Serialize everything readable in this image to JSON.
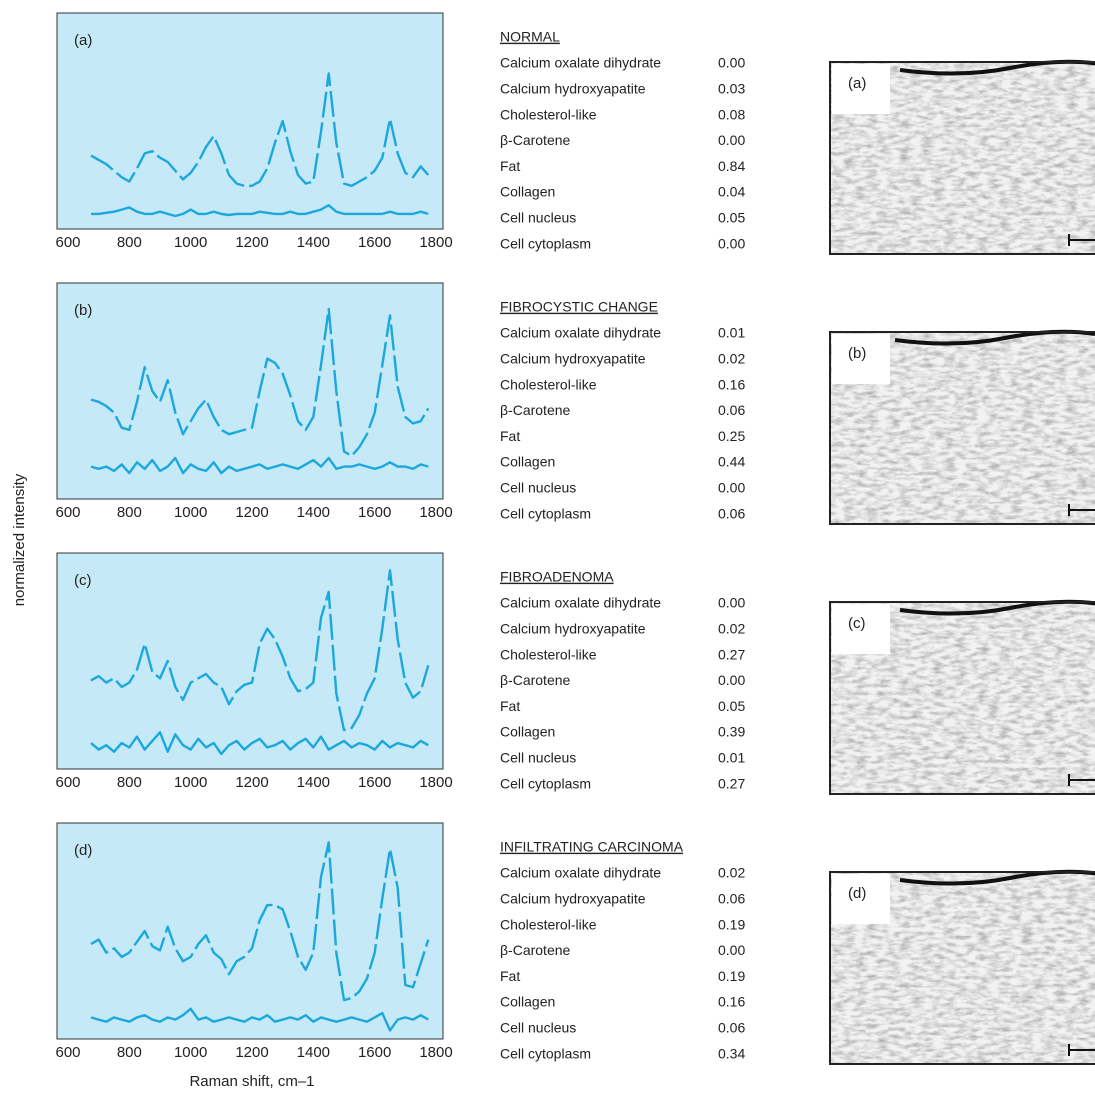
{
  "axis_labels": {
    "y": "normalized intensity",
    "x": "Raman shift, cm–1"
  },
  "chart_data": [
    {
      "type": "line",
      "label": "(a)",
      "xlim": [
        600,
        1800
      ],
      "ylim": [
        0,
        1
      ],
      "xticks": [
        600,
        800,
        1000,
        1200,
        1400,
        1600,
        1800
      ],
      "background": "#c6e9f7",
      "x": [
        675,
        700,
        725,
        750,
        775,
        800,
        825,
        850,
        875,
        900,
        925,
        950,
        975,
        1000,
        1025,
        1050,
        1075,
        1100,
        1125,
        1150,
        1175,
        1200,
        1225,
        1250,
        1275,
        1300,
        1325,
        1350,
        1375,
        1400,
        1425,
        1450,
        1475,
        1500,
        1525,
        1550,
        1575,
        1600,
        1625,
        1650,
        1675,
        1700,
        1725,
        1750,
        1775
      ],
      "series": [
        {
          "color": "#1ba8dc",
          "style": "dashed",
          "values": [
            0.34,
            0.32,
            0.3,
            0.27,
            0.24,
            0.22,
            0.28,
            0.35,
            0.36,
            0.33,
            0.31,
            0.27,
            0.23,
            0.26,
            0.31,
            0.38,
            0.43,
            0.35,
            0.25,
            0.21,
            0.2,
            0.2,
            0.22,
            0.28,
            0.4,
            0.5,
            0.36,
            0.25,
            0.21,
            0.22,
            0.45,
            0.72,
            0.4,
            0.21,
            0.2,
            0.22,
            0.24,
            0.27,
            0.33,
            0.51,
            0.35,
            0.26,
            0.24,
            0.29,
            0.25
          ]
        },
        {
          "color": "#1ba8dc",
          "style": "solid",
          "values": [
            0.07,
            0.07,
            0.075,
            0.08,
            0.09,
            0.1,
            0.08,
            0.07,
            0.07,
            0.08,
            0.07,
            0.06,
            0.07,
            0.09,
            0.07,
            0.07,
            0.08,
            0.07,
            0.065,
            0.07,
            0.07,
            0.07,
            0.08,
            0.075,
            0.07,
            0.07,
            0.08,
            0.07,
            0.07,
            0.08,
            0.09,
            0.11,
            0.08,
            0.07,
            0.07,
            0.07,
            0.07,
            0.07,
            0.07,
            0.08,
            0.07,
            0.07,
            0.07,
            0.08,
            0.07
          ]
        }
      ]
    },
    {
      "type": "line",
      "label": "(b)",
      "xlim": [
        600,
        1800
      ],
      "ylim": [
        0,
        1
      ],
      "xticks": [
        600,
        800,
        1000,
        1200,
        1400,
        1600,
        1800
      ],
      "background": "#c6e9f7",
      "x": [
        675,
        700,
        725,
        750,
        775,
        800,
        825,
        850,
        875,
        900,
        925,
        950,
        975,
        1000,
        1025,
        1050,
        1075,
        1100,
        1125,
        1150,
        1175,
        1200,
        1225,
        1250,
        1275,
        1300,
        1325,
        1350,
        1375,
        1400,
        1425,
        1450,
        1475,
        1500,
        1525,
        1550,
        1575,
        1600,
        1625,
        1650,
        1675,
        1700,
        1725,
        1750,
        1775
      ],
      "series": [
        {
          "color": "#1ba8dc",
          "style": "dashed",
          "values": [
            0.46,
            0.45,
            0.43,
            0.4,
            0.33,
            0.32,
            0.45,
            0.61,
            0.5,
            0.45,
            0.55,
            0.4,
            0.3,
            0.36,
            0.42,
            0.46,
            0.38,
            0.32,
            0.3,
            0.31,
            0.32,
            0.33,
            0.5,
            0.65,
            0.63,
            0.58,
            0.48,
            0.36,
            0.32,
            0.38,
            0.62,
            0.88,
            0.5,
            0.22,
            0.2,
            0.24,
            0.3,
            0.4,
            0.62,
            0.85,
            0.52,
            0.38,
            0.35,
            0.36,
            0.42
          ]
        },
        {
          "color": "#1ba8dc",
          "style": "solid",
          "values": [
            0.15,
            0.14,
            0.15,
            0.13,
            0.16,
            0.12,
            0.17,
            0.14,
            0.18,
            0.13,
            0.15,
            0.19,
            0.12,
            0.16,
            0.14,
            0.13,
            0.17,
            0.12,
            0.15,
            0.13,
            0.14,
            0.15,
            0.16,
            0.14,
            0.15,
            0.16,
            0.15,
            0.14,
            0.16,
            0.18,
            0.15,
            0.19,
            0.14,
            0.15,
            0.15,
            0.16,
            0.15,
            0.14,
            0.15,
            0.17,
            0.15,
            0.15,
            0.14,
            0.16,
            0.15
          ]
        }
      ]
    },
    {
      "type": "line",
      "label": "(c)",
      "xlim": [
        600,
        1800
      ],
      "ylim": [
        0,
        1
      ],
      "xticks": [
        600,
        800,
        1000,
        1200,
        1400,
        1600,
        1800
      ],
      "background": "#c6e9f7",
      "x": [
        675,
        700,
        725,
        750,
        775,
        800,
        825,
        850,
        875,
        900,
        925,
        950,
        975,
        1000,
        1025,
        1050,
        1075,
        1100,
        1125,
        1150,
        1175,
        1200,
        1225,
        1250,
        1275,
        1300,
        1325,
        1350,
        1375,
        1400,
        1425,
        1450,
        1475,
        1500,
        1525,
        1550,
        1575,
        1600,
        1625,
        1650,
        1675,
        1700,
        1725,
        1750,
        1775
      ],
      "series": [
        {
          "color": "#1ba8dc",
          "style": "dashed",
          "values": [
            0.41,
            0.43,
            0.4,
            0.42,
            0.38,
            0.4,
            0.46,
            0.58,
            0.45,
            0.42,
            0.5,
            0.38,
            0.32,
            0.4,
            0.42,
            0.44,
            0.4,
            0.38,
            0.3,
            0.36,
            0.39,
            0.4,
            0.58,
            0.65,
            0.6,
            0.52,
            0.42,
            0.36,
            0.37,
            0.4,
            0.7,
            0.82,
            0.35,
            0.18,
            0.19,
            0.25,
            0.35,
            0.42,
            0.65,
            0.92,
            0.6,
            0.4,
            0.33,
            0.36,
            0.48
          ]
        },
        {
          "color": "#1ba8dc",
          "style": "solid",
          "values": [
            0.12,
            0.09,
            0.11,
            0.08,
            0.12,
            0.1,
            0.15,
            0.09,
            0.13,
            0.17,
            0.08,
            0.16,
            0.11,
            0.09,
            0.14,
            0.1,
            0.12,
            0.07,
            0.11,
            0.13,
            0.09,
            0.12,
            0.14,
            0.1,
            0.11,
            0.13,
            0.09,
            0.12,
            0.14,
            0.1,
            0.15,
            0.09,
            0.11,
            0.13,
            0.1,
            0.12,
            0.11,
            0.09,
            0.13,
            0.1,
            0.12,
            0.11,
            0.1,
            0.13,
            0.11
          ]
        }
      ]
    },
    {
      "type": "line",
      "label": "(d)",
      "xlim": [
        600,
        1800
      ],
      "ylim": [
        0,
        1
      ],
      "xticks": [
        600,
        800,
        1000,
        1200,
        1400,
        1600,
        1800
      ],
      "background": "#c6e9f7",
      "x": [
        675,
        700,
        725,
        750,
        775,
        800,
        825,
        850,
        875,
        900,
        925,
        950,
        975,
        1000,
        1025,
        1050,
        1075,
        1100,
        1125,
        1150,
        1175,
        1200,
        1225,
        1250,
        1275,
        1300,
        1325,
        1350,
        1375,
        1400,
        1425,
        1450,
        1475,
        1500,
        1525,
        1550,
        1575,
        1600,
        1625,
        1650,
        1675,
        1700,
        1725,
        1750,
        1775
      ],
      "series": [
        {
          "color": "#1ba8dc",
          "style": "dashed",
          "values": [
            0.44,
            0.46,
            0.4,
            0.42,
            0.38,
            0.4,
            0.45,
            0.5,
            0.43,
            0.41,
            0.52,
            0.42,
            0.36,
            0.38,
            0.44,
            0.48,
            0.4,
            0.37,
            0.3,
            0.36,
            0.38,
            0.42,
            0.55,
            0.62,
            0.62,
            0.6,
            0.5,
            0.38,
            0.32,
            0.4,
            0.75,
            0.91,
            0.4,
            0.18,
            0.19,
            0.22,
            0.28,
            0.4,
            0.65,
            0.88,
            0.7,
            0.25,
            0.24,
            0.35,
            0.46
          ]
        },
        {
          "color": "#1ba8dc",
          "style": "solid",
          "values": [
            0.1,
            0.09,
            0.08,
            0.1,
            0.09,
            0.08,
            0.1,
            0.11,
            0.09,
            0.08,
            0.1,
            0.09,
            0.11,
            0.14,
            0.09,
            0.1,
            0.08,
            0.09,
            0.1,
            0.09,
            0.08,
            0.1,
            0.09,
            0.11,
            0.08,
            0.09,
            0.1,
            0.09,
            0.11,
            0.08,
            0.1,
            0.09,
            0.08,
            0.09,
            0.1,
            0.09,
            0.08,
            0.1,
            0.12,
            0.04,
            0.09,
            0.1,
            0.09,
            0.11,
            0.09
          ]
        }
      ]
    }
  ],
  "tables": [
    {
      "title": "NORMAL",
      "rows": [
        [
          "Calcium oxalate dihydrate",
          "0.00"
        ],
        [
          "Calcium hydroxyapatite",
          "0.03"
        ],
        [
          "Cholesterol-like",
          "0.08"
        ],
        [
          "β-Carotene",
          "0.00"
        ],
        [
          "Fat",
          "0.84"
        ],
        [
          "Collagen",
          "0.04"
        ],
        [
          "Cell nucleus",
          "0.05"
        ],
        [
          "Cell cytoplasm",
          "0.00"
        ]
      ]
    },
    {
      "title": "FIBROCYSTIC CHANGE",
      "rows": [
        [
          "Calcium oxalate dihydrate",
          "0.01"
        ],
        [
          "Calcium hydroxyapatite",
          "0.02"
        ],
        [
          "Cholesterol-like",
          "0.16"
        ],
        [
          "β-Carotene",
          "0.06"
        ],
        [
          "Fat",
          "0.25"
        ],
        [
          "Collagen",
          "0.44"
        ],
        [
          "Cell nucleus",
          "0.00"
        ],
        [
          "Cell cytoplasm",
          "0.06"
        ]
      ]
    },
    {
      "title": "FIBROADENOMA",
      "rows": [
        [
          "Calcium oxalate dihydrate",
          "0.00"
        ],
        [
          "Calcium hydroxyapatite",
          "0.02"
        ],
        [
          "Cholesterol-like",
          "0.27"
        ],
        [
          "β-Carotene",
          "0.00"
        ],
        [
          "Fat",
          "0.05"
        ],
        [
          "Collagen",
          "0.39"
        ],
        [
          "Cell nucleus",
          "0.01"
        ],
        [
          "Cell cytoplasm",
          "0.27"
        ]
      ]
    },
    {
      "title": "INFILTRATING CARCINOMA",
      "rows": [
        [
          "Calcium oxalate dihydrate",
          "0.02"
        ],
        [
          "Calcium hydroxyapatite",
          "0.06"
        ],
        [
          "Cholesterol-like",
          "0.19"
        ],
        [
          "β-Carotene",
          "0.00"
        ],
        [
          "Fat",
          "0.19"
        ],
        [
          "Collagen",
          "0.16"
        ],
        [
          "Cell nucleus",
          "0.06"
        ],
        [
          "Cell cytoplasm",
          "0.34"
        ]
      ]
    }
  ],
  "images": [
    {
      "label": "(a)"
    },
    {
      "label": "(b)"
    },
    {
      "label": "(c)"
    },
    {
      "label": "(d)"
    }
  ]
}
